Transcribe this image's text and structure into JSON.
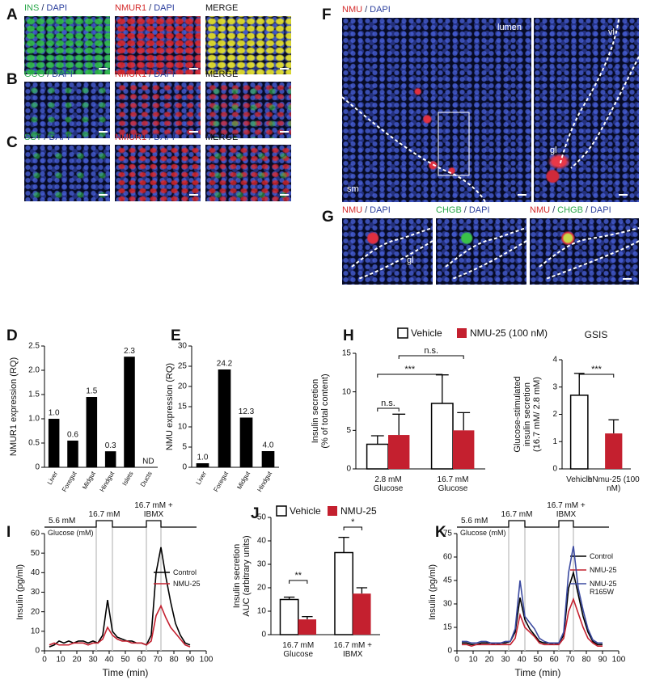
{
  "micrographs": [
    {
      "panel": "A",
      "images": [
        {
          "heading": [
            {
              "text": "INS",
              "color": "#2aa84a"
            },
            {
              "text": "/",
              "color": "#1c2a5e"
            },
            {
              "text": "DAPI",
              "color": "#2b3f9e"
            }
          ]
        },
        {
          "heading": [
            {
              "text": "NMUR1",
              "color": "#d42a2a"
            },
            {
              "text": "/",
              "color": "#1c2a5e"
            },
            {
              "text": "DAPI",
              "color": "#2b3f9e"
            }
          ]
        },
        {
          "heading": [
            {
              "text": "MERGE",
              "color": "#111111"
            }
          ]
        }
      ]
    },
    {
      "panel": "B",
      "images": [
        {
          "heading": [
            {
              "text": "GCG",
              "color": "#2aa84a"
            },
            {
              "text": "/",
              "color": "#1c2a5e"
            },
            {
              "text": "DAPI",
              "color": "#2b3f9e"
            }
          ]
        },
        {
          "heading": [
            {
              "text": "NMUR1",
              "color": "#d42a2a"
            },
            {
              "text": "/",
              "color": "#1c2a5e"
            },
            {
              "text": "DAPI",
              "color": "#2b3f9e"
            }
          ]
        },
        {
          "heading": [
            {
              "text": "MERGE",
              "color": "#111111"
            }
          ]
        }
      ]
    },
    {
      "panel": "C",
      "images": [
        {
          "heading": [
            {
              "text": "SST",
              "color": "#2aa84a"
            },
            {
              "text": "/",
              "color": "#1c2a5e"
            },
            {
              "text": "DAPI",
              "color": "#2b3f9e"
            }
          ]
        },
        {
          "heading": [
            {
              "text": "NMUR1",
              "color": "#d42a2a"
            },
            {
              "text": "/",
              "color": "#1c2a5e"
            },
            {
              "text": "DAPI",
              "color": "#2b3f9e"
            }
          ]
        },
        {
          "heading": [
            {
              "text": "MERGE",
              "color": "#111111"
            }
          ]
        }
      ]
    },
    {
      "panel": "F",
      "images": [
        {
          "heading": [
            {
              "text": "NMU",
              "color": "#d42a2a"
            },
            {
              "text": "/",
              "color": "#1c2a5e"
            },
            {
              "text": "DAPI",
              "color": "#2b3f9e"
            }
          ],
          "labels": [
            "lumen",
            "sm"
          ]
        },
        {
          "labels": [
            "vl",
            "gl"
          ]
        }
      ]
    },
    {
      "panel": "G",
      "images": [
        {
          "heading": [
            {
              "text": "NMU",
              "color": "#d42a2a"
            },
            {
              "text": "/",
              "color": "#1c2a5e"
            },
            {
              "text": "DAPI",
              "color": "#2b3f9e"
            }
          ],
          "labels": [
            "gl"
          ]
        },
        {
          "heading": [
            {
              "text": "CHGB",
              "color": "#2aa84a"
            },
            {
              "text": "/",
              "color": "#1c2a5e"
            },
            {
              "text": "DAPI",
              "color": "#2b3f9e"
            }
          ]
        },
        {
          "heading": [
            {
              "text": "NMU",
              "color": "#d42a2a"
            },
            {
              "text": "/",
              "color": "#1c2a5e"
            },
            {
              "text": "CHGB",
              "color": "#2aa84a"
            },
            {
              "text": "/",
              "color": "#1c2a5e"
            },
            {
              "text": "DAPI",
              "color": "#2b3f9e"
            }
          ]
        }
      ]
    }
  ],
  "chart_data": [
    {
      "type": "bar",
      "panel": "D",
      "ylabel": [
        "NMUR1 expression (RQ)"
      ],
      "categories": [
        "Liver",
        "Foregut",
        "Midgut",
        "Hindgut",
        "Islets",
        "Ducts"
      ],
      "values": [
        1.0,
        0.55,
        1.45,
        0.33,
        2.28,
        null
      ],
      "value_labels": [
        "1.0",
        "0.6",
        "1.5",
        "0.3",
        "2.3",
        "ND"
      ],
      "color": "#000000",
      "ylim": [
        0,
        2.5
      ],
      "yticks": [
        0,
        0.5,
        {
          "value": 1,
          "label": "1.0"
        },
        1.5,
        {
          "value": 2,
          "label": "2.0"
        },
        2.5
      ]
    },
    {
      "type": "bar",
      "panel": "E",
      "ylabel": [
        "NMU expression (RQ)"
      ],
      "categories": [
        "Liver",
        "Foregut",
        "Midgut",
        "Hindgut"
      ],
      "values": [
        1.0,
        24.2,
        12.3,
        4.0
      ],
      "value_labels": [
        "1.0",
        "24.2",
        "12.3",
        "4.0"
      ],
      "color": "#000000",
      "ylim": [
        0,
        30
      ],
      "yticks": [
        0,
        5,
        10,
        15,
        20,
        25,
        30
      ]
    },
    {
      "type": "bar",
      "panel": "H",
      "ylabel": [
        "Insulin secretion",
        "(% of total content)"
      ],
      "categories": [
        "2.8 mM Glucose",
        "16.7 mM Glucose"
      ],
      "series": [
        {
          "name": "Vehicle",
          "color": "#ffffff",
          "values": [
            3.2,
            8.5
          ],
          "errors": [
            1.1,
            3.7
          ]
        },
        {
          "name": "NMU-25 (100 nM)",
          "color": "#c4202f",
          "values": [
            4.4,
            5.0
          ],
          "errors": [
            2.7,
            2.3
          ]
        }
      ],
      "ylim": [
        0,
        15
      ],
      "yticks": [
        0,
        5,
        10,
        15
      ],
      "annotations": [
        "n.s.",
        "n.s.",
        "***"
      ]
    },
    {
      "type": "bar",
      "title": "GSIS",
      "ylabel": [
        "Glucose-stimulated",
        "insulin secretion",
        "(16.7 mM/ 2.8 mM)"
      ],
      "categories": [
        "Vehicle",
        "hNmu-25 (100 nM)"
      ],
      "values": [
        2.7,
        1.3
      ],
      "errors": [
        0.8,
        0.5
      ],
      "colors": [
        "#ffffff",
        "#c4202f"
      ],
      "ylim": [
        0,
        4
      ],
      "yticks": [
        0,
        1,
        2,
        3,
        4
      ],
      "annotations": [
        "***"
      ]
    },
    {
      "type": "line",
      "panel": "I",
      "xlabel": "Time (min)",
      "ylabel": [
        "Insulin (pg/ml)"
      ],
      "x": [
        3,
        6,
        9,
        12,
        15,
        18,
        21,
        24,
        27,
        30,
        33,
        36,
        39,
        42,
        45,
        48,
        51,
        54,
        57,
        60,
        63,
        66,
        69,
        72,
        75,
        78,
        81,
        84,
        87,
        90
      ],
      "series": [
        {
          "name": "Control",
          "color": "#000000",
          "values": [
            2,
            3,
            5,
            4,
            5,
            4,
            5,
            5,
            4,
            5,
            4,
            8,
            26,
            10,
            7,
            6,
            5,
            5,
            4,
            4,
            3,
            8,
            40,
            53,
            38,
            25,
            14,
            8,
            4,
            3
          ]
        },
        {
          "name": "NMU-25",
          "color": "#c4202f",
          "values": [
            3,
            4,
            3,
            3,
            3,
            4,
            4,
            4,
            3,
            4,
            4,
            6,
            12,
            8,
            6,
            5,
            5,
            4,
            4,
            4,
            3,
            5,
            18,
            23,
            17,
            12,
            9,
            6,
            3,
            2
          ]
        }
      ],
      "xlim": [
        0,
        100
      ],
      "xticks": [
        0,
        10,
        20,
        30,
        40,
        50,
        60,
        70,
        80,
        90,
        100
      ],
      "ylim": [
        0,
        60
      ],
      "yticks": [
        0,
        10,
        20,
        30,
        40,
        50,
        60
      ],
      "protocol": {
        "labels": [
          "5.6 mM",
          "16.7 mM",
          "16.7 mM + IBMX"
        ],
        "axis_label": "Glucose (mM)"
      },
      "phase_lines": [
        32,
        42,
        63,
        72
      ]
    },
    {
      "type": "bar",
      "panel": "J",
      "ylabel": [
        "Insulin secretion",
        "AUC (arbitrary units)"
      ],
      "categories": [
        "16.7 mM Glucose",
        "16.7 mM + IBMX"
      ],
      "series": [
        {
          "name": "Vehicle",
          "color": "#ffffff",
          "values": [
            15,
            35
          ],
          "errors": [
            1,
            6.5
          ]
        },
        {
          "name": "NMU-25",
          "color": "#c4202f",
          "values": [
            6.5,
            17.5
          ],
          "errors": [
            1.2,
            2.5
          ]
        }
      ],
      "ylim": [
        0,
        50
      ],
      "yticks": [
        0,
        10,
        20,
        30,
        40,
        50
      ],
      "annotations": [
        "**",
        "*"
      ]
    },
    {
      "type": "line",
      "panel": "K",
      "xlabel": "Time (min)",
      "ylabel": [
        "Insulin (pg/ml)"
      ],
      "x": [
        3,
        6,
        9,
        12,
        15,
        18,
        21,
        24,
        27,
        30,
        33,
        36,
        39,
        42,
        45,
        48,
        51,
        54,
        57,
        60,
        63,
        66,
        69,
        72,
        75,
        78,
        81,
        84,
        87,
        90
      ],
      "series": [
        {
          "name": "Control",
          "color": "#000000",
          "values": [
            5,
            5,
            4,
            4,
            5,
            5,
            5,
            4,
            5,
            5,
            6,
            12,
            34,
            20,
            14,
            10,
            6,
            5,
            5,
            4,
            5,
            10,
            40,
            50,
            36,
            22,
            12,
            6,
            4,
            4
          ]
        },
        {
          "name": "NMU-25",
          "color": "#c4202f",
          "values": [
            4,
            4,
            3,
            4,
            4,
            4,
            4,
            4,
            4,
            4,
            4,
            8,
            23,
            15,
            12,
            9,
            5,
            4,
            4,
            4,
            4,
            8,
            25,
            33,
            24,
            15,
            8,
            5,
            3,
            3
          ]
        },
        {
          "name": "NMU-25 R165W",
          "color": "#3b4aa0",
          "values": [
            6,
            6,
            5,
            5,
            6,
            6,
            5,
            5,
            5,
            6,
            6,
            14,
            45,
            22,
            18,
            14,
            8,
            6,
            5,
            5,
            5,
            12,
            50,
            67,
            40,
            26,
            14,
            7,
            5,
            5
          ]
        }
      ],
      "xlim": [
        0,
        100
      ],
      "xticks": [
        0,
        10,
        20,
        30,
        40,
        50,
        60,
        70,
        80,
        90,
        100
      ],
      "ylim": [
        0,
        75
      ],
      "yticks": [
        0,
        15,
        30,
        45,
        60,
        75
      ],
      "protocol": {
        "labels": [
          "5.6 mM",
          "16.7 mM",
          "16.7 mM + IBMX"
        ],
        "axis_label": "Glucose (mM)"
      },
      "phase_lines": [
        32,
        42,
        63,
        72
      ]
    }
  ]
}
